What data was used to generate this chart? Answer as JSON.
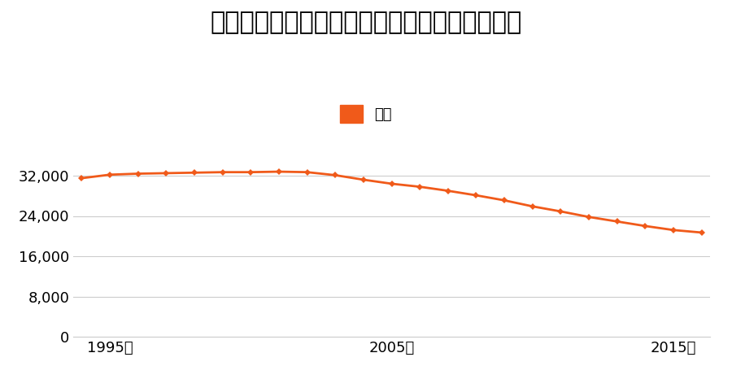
{
  "title": "青森県弘前市大字藤代２丁目９番５の地価推移",
  "legend_label": "価格",
  "line_color": "#F05A1A",
  "marker_color": "#F05A1A",
  "background_color": "#ffffff",
  "years": [
    1994,
    1995,
    1996,
    1997,
    1998,
    1999,
    2000,
    2001,
    2002,
    2003,
    2004,
    2005,
    2006,
    2007,
    2008,
    2009,
    2010,
    2011,
    2012,
    2013,
    2014,
    2015,
    2016
  ],
  "values": [
    31500,
    32200,
    32400,
    32500,
    32600,
    32700,
    32700,
    32800,
    32700,
    32100,
    31200,
    30400,
    29800,
    29000,
    28100,
    27100,
    25900,
    24900,
    23800,
    22900,
    22000,
    21200,
    20700
  ],
  "ylim": [
    0,
    40000
  ],
  "yticks": [
    0,
    8000,
    16000,
    24000,
    32000
  ],
  "xticks": [
    1995,
    2005,
    2015
  ],
  "xlabel_suffix": "年",
  "title_fontsize": 22,
  "legend_fontsize": 13,
  "tick_fontsize": 13,
  "grid_color": "#cccccc",
  "spine_color": "#cccccc"
}
